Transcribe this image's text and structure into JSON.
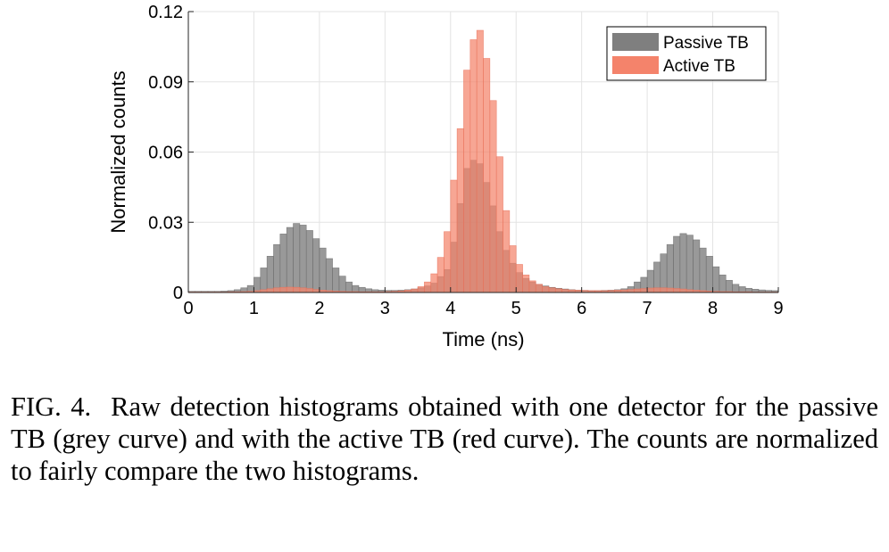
{
  "chart_data": {
    "type": "bar",
    "xlabel": "Time (ns)",
    "ylabel": "Normalized counts",
    "xlim": [
      0,
      9
    ],
    "ylim": [
      0,
      0.12
    ],
    "xticks": [
      "0",
      "1",
      "2",
      "3",
      "4",
      "5",
      "6",
      "7",
      "8",
      "9"
    ],
    "yticks": [
      "0",
      "0.03",
      "0.06",
      "0.09",
      "0.12"
    ],
    "grid": true,
    "legend_position": "top-right",
    "bin_width": 0.1,
    "x": [
      0.05,
      0.15,
      0.25,
      0.35,
      0.45,
      0.55,
      0.65,
      0.75,
      0.85,
      0.95,
      1.05,
      1.15,
      1.25,
      1.35,
      1.45,
      1.55,
      1.65,
      1.75,
      1.85,
      1.95,
      2.05,
      2.15,
      2.25,
      2.35,
      2.45,
      2.55,
      2.65,
      2.75,
      2.85,
      2.95,
      3.05,
      3.15,
      3.25,
      3.35,
      3.45,
      3.55,
      3.65,
      3.75,
      3.85,
      3.95,
      4.05,
      4.15,
      4.25,
      4.35,
      4.45,
      4.55,
      4.65,
      4.75,
      4.85,
      4.95,
      5.05,
      5.15,
      5.25,
      5.35,
      5.45,
      5.55,
      5.65,
      5.75,
      5.85,
      5.95,
      6.05,
      6.15,
      6.25,
      6.35,
      6.45,
      6.55,
      6.65,
      6.75,
      6.85,
      6.95,
      7.05,
      7.15,
      7.25,
      7.35,
      7.45,
      7.55,
      7.65,
      7.75,
      7.85,
      7.95,
      8.05,
      8.15,
      8.25,
      8.35,
      8.45,
      8.55,
      8.65,
      8.75,
      8.85,
      8.95
    ],
    "series": [
      {
        "name": "Passive TB",
        "color": "#7f7f7f",
        "values": [
          0.0005,
          0.0005,
          0.0005,
          0.0005,
          0.0005,
          0.0006,
          0.0008,
          0.0012,
          0.002,
          0.003,
          0.0065,
          0.0105,
          0.0155,
          0.0205,
          0.025,
          0.0278,
          0.0295,
          0.0288,
          0.0265,
          0.023,
          0.019,
          0.0145,
          0.0105,
          0.007,
          0.0045,
          0.003,
          0.0022,
          0.0016,
          0.0012,
          0.001,
          0.0009,
          0.0009,
          0.001,
          0.0012,
          0.0015,
          0.002,
          0.0028,
          0.004,
          0.0068,
          0.0098,
          0.0215,
          0.038,
          0.053,
          0.0565,
          0.055,
          0.047,
          0.037,
          0.026,
          0.018,
          0.0125,
          0.0085,
          0.006,
          0.0045,
          0.0035,
          0.0028,
          0.0022,
          0.0018,
          0.0015,
          0.0012,
          0.001,
          0.0009,
          0.0008,
          0.0008,
          0.0009,
          0.001,
          0.0012,
          0.0016,
          0.0025,
          0.0045,
          0.0065,
          0.0095,
          0.013,
          0.0165,
          0.0205,
          0.024,
          0.0252,
          0.0245,
          0.0225,
          0.019,
          0.0155,
          0.011,
          0.0075,
          0.0052,
          0.0035,
          0.0025,
          0.0018,
          0.0014,
          0.0011,
          0.0009,
          0.0008
        ]
      },
      {
        "name": "Active TB",
        "color": "#f4836b",
        "values": [
          0.0002,
          0.0002,
          0.0002,
          0.0002,
          0.0002,
          0.0002,
          0.0003,
          0.0003,
          0.0004,
          0.0005,
          0.0008,
          0.0012,
          0.0016,
          0.002,
          0.0022,
          0.0023,
          0.0022,
          0.002,
          0.0017,
          0.0013,
          0.001,
          0.0008,
          0.0006,
          0.0005,
          0.0004,
          0.0004,
          0.0003,
          0.0003,
          0.0003,
          0.0003,
          0.0004,
          0.0005,
          0.0007,
          0.001,
          0.0015,
          0.0025,
          0.0045,
          0.008,
          0.015,
          0.026,
          0.048,
          0.07,
          0.095,
          0.108,
          0.112,
          0.1,
          0.082,
          0.058,
          0.035,
          0.02,
          0.012,
          0.0075,
          0.005,
          0.0035,
          0.0025,
          0.002,
          0.0016,
          0.0013,
          0.0011,
          0.001,
          0.0009,
          0.0008,
          0.0008,
          0.0008,
          0.0009,
          0.001,
          0.0011,
          0.0013,
          0.0015,
          0.0017,
          0.0019,
          0.002,
          0.002,
          0.0019,
          0.0017,
          0.0015,
          0.0012,
          0.001,
          0.0008,
          0.0006,
          0.0005,
          0.0004,
          0.0004,
          0.0003,
          0.0003,
          0.0003,
          0.0002,
          0.0002,
          0.0002,
          0.0002
        ]
      }
    ]
  },
  "caption": {
    "label": "FIG. 4.",
    "text": "Raw detection histograms obtained with one detector for the passive TB (grey curve) and with the active TB (red curve). The counts are normalized to fairly compare the two histograms."
  }
}
